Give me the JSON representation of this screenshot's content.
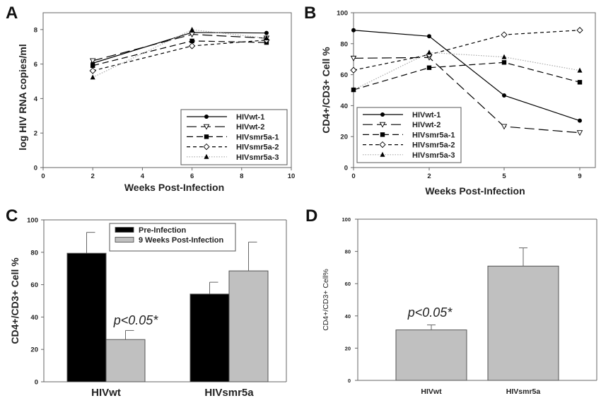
{
  "chart_data": [
    {
      "panel": "A",
      "type": "line",
      "title": "",
      "xlabel": "Weeks Post-Infection",
      "ylabel": "log HIV RNA copies/ml",
      "xlim": [
        0,
        10
      ],
      "ylim": [
        0,
        9
      ],
      "xticks": [
        0,
        2,
        4,
        6,
        8,
        10
      ],
      "yticks": [
        0,
        2,
        4,
        6,
        8
      ],
      "grid": false,
      "legend_position": "bottom-right",
      "x": [
        2,
        6,
        9
      ],
      "series": [
        {
          "name": "HIVwt-1",
          "marker": "filled-circle",
          "dash": "solid",
          "values": [
            6.05,
            7.83,
            7.8
          ]
        },
        {
          "name": "HIVwt-2",
          "marker": "open-triangle-down",
          "dash": "long-dash",
          "values": [
            6.19,
            7.72,
            7.5
          ]
        },
        {
          "name": "HIVsmr5a-1",
          "marker": "filled-square",
          "dash": "medium-dash",
          "values": [
            5.91,
            7.34,
            7.25
          ]
        },
        {
          "name": "HIVsmr5a-2",
          "marker": "open-diamond",
          "dash": "short-dash",
          "values": [
            5.61,
            7.05,
            7.39
          ]
        },
        {
          "name": "HIVsmr5a-3",
          "marker": "filled-triangle-up",
          "dash": "dotted",
          "values": [
            5.23,
            7.99,
            7.5
          ]
        }
      ]
    },
    {
      "panel": "B",
      "type": "line",
      "title": "",
      "xlabel": "Weeks Post-Infection",
      "ylabel": "CD4+/CD3+ Cell %",
      "categories": [
        "0",
        "2",
        "5",
        "9"
      ],
      "ylim": [
        0,
        100
      ],
      "yticks": [
        0,
        20,
        40,
        60,
        80,
        100
      ],
      "grid": false,
      "legend_position": "bottom-left",
      "series": [
        {
          "name": "HIVwt-1",
          "marker": "filled-circle",
          "dash": "solid",
          "values": [
            88.7,
            84.8,
            46.6,
            30.3
          ]
        },
        {
          "name": "HIVwt-2",
          "marker": "open-triangle-down",
          "dash": "long-dash",
          "values": [
            70.6,
            71.1,
            26.5,
            22.5
          ]
        },
        {
          "name": "HIVsmr5a-1",
          "marker": "filled-square",
          "dash": "medium-dash",
          "values": [
            50.2,
            64.5,
            67.9,
            55.1
          ]
        },
        {
          "name": "HIVsmr5a-2",
          "marker": "open-diamond",
          "dash": "short-dash",
          "values": [
            62.9,
            72.9,
            85.8,
            88.7
          ]
        },
        {
          "name": "HIVsmr5a-3",
          "marker": "filled-triangle-up",
          "dash": "dotted",
          "values": [
            50.2,
            74.3,
            71.4,
            62.7
          ]
        }
      ]
    },
    {
      "panel": "C",
      "type": "bar",
      "title": "",
      "xlabel": "",
      "ylabel": "CD4+/CD3+ Cell %",
      "categories": [
        "HIVwt",
        "HIVsmr5a"
      ],
      "ylim": [
        0,
        100
      ],
      "yticks": [
        0,
        20,
        40,
        60,
        80,
        100
      ],
      "grid": false,
      "legend_position": "top-center",
      "series": [
        {
          "name": "Pre-Infection",
          "color": "#000000",
          "values": [
            79.4,
            54.2
          ],
          "error": [
            12.9,
            7.3
          ]
        },
        {
          "name": "9 Weeks Post-Infection",
          "color": "#c0c0c0",
          "values": [
            26.1,
            68.5
          ],
          "error": [
            5.6,
            17.8
          ]
        }
      ],
      "annotations": [
        {
          "text": "p<0.05*",
          "category": "HIVwt",
          "series": "9 Weeks Post-Infection"
        }
      ]
    },
    {
      "panel": "D",
      "type": "bar",
      "title": "",
      "xlabel": "",
      "ylabel": "CD4+/CD3+ Cell%",
      "categories": [
        "HIVwt",
        "HIVsmr5a"
      ],
      "ylim": [
        0,
        100
      ],
      "yticks": [
        0,
        20,
        40,
        60,
        80,
        100
      ],
      "grid": false,
      "series": [
        {
          "name": "CD4+/CD3+ Cell%",
          "color": "#c0c0c0",
          "values": [
            31.3,
            70.9
          ],
          "error": [
            3.1,
            11.3
          ]
        }
      ],
      "annotations": [
        {
          "text": "p<0.05*",
          "category": "HIVwt"
        }
      ]
    }
  ],
  "panel_letters": [
    "A",
    "B",
    "C",
    "D"
  ],
  "colors": {
    "bar_black": "#000000",
    "bar_gray": "#c0c0c0",
    "frame": "#666666",
    "ink": "#111111"
  }
}
